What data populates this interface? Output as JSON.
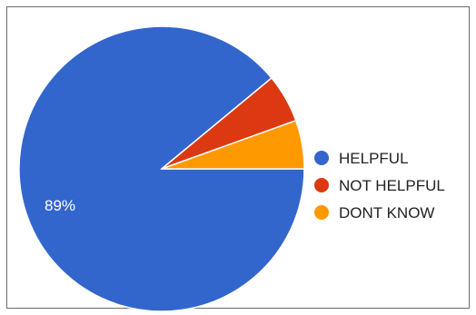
{
  "chart_data": {
    "type": "pie",
    "categories": [
      "HELPFUL",
      "NOT HELPFUL",
      "DONT KNOW"
    ],
    "values": [
      89,
      5.5,
      5.5
    ],
    "colors": [
      "#3366cc",
      "#dc3912",
      "#ff9900"
    ],
    "data_labels": [
      "89%",
      "",
      ""
    ],
    "legend_position": "right",
    "start_angle_deg": 90,
    "direction": "counterclockwise"
  }
}
